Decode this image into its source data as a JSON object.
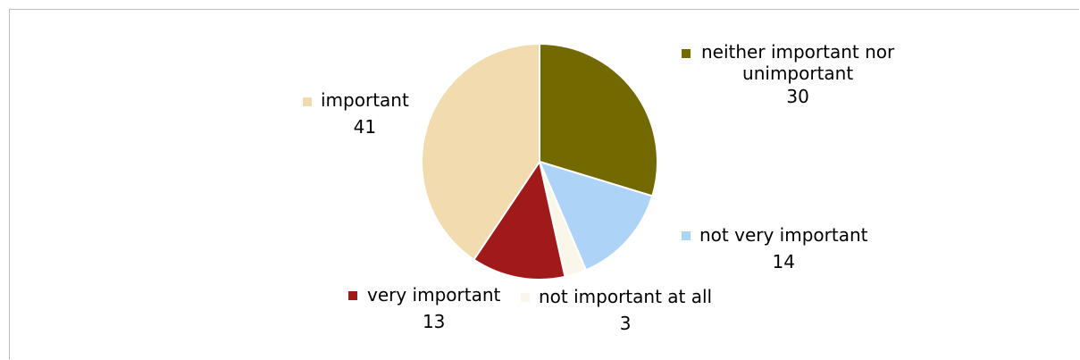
{
  "chart_data": {
    "type": "pie",
    "title": "",
    "slices": [
      {
        "label": "neither important nor unimportant",
        "value": 30,
        "color": "#726A00"
      },
      {
        "label": "not very important",
        "value": 14,
        "color": "#ADD4F7"
      },
      {
        "label": "not important at all",
        "value": 3,
        "color": "#FBF6EA"
      },
      {
        "label": "very important",
        "value": 13,
        "color": "#A01A1A"
      },
      {
        "label": "important",
        "value": 41,
        "color": "#F1DBAF"
      }
    ],
    "start_angle_deg": 0,
    "direction": "clockwise",
    "data_labels": "category-and-value-with-legend-key"
  }
}
